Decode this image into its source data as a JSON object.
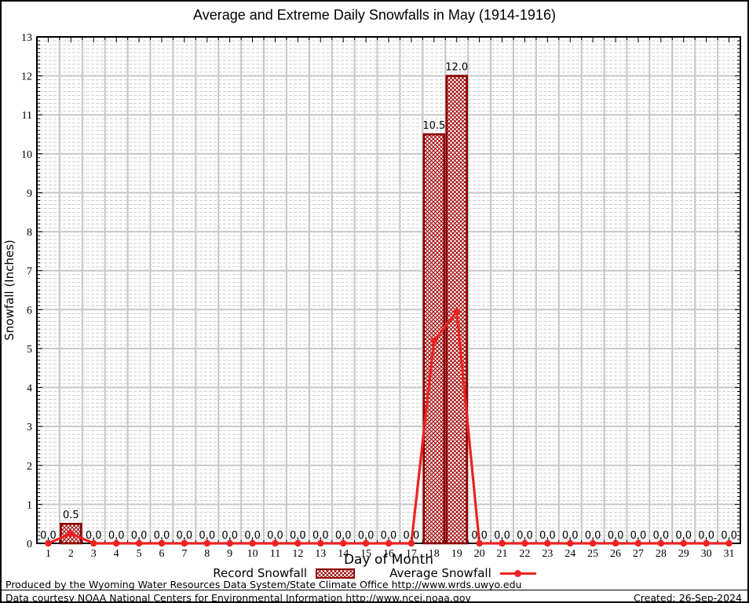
{
  "title": "Average and Extreme Daily Snowfalls in May (1914-1916)",
  "chart_data": {
    "type": "bar",
    "title": "Average and Extreme Daily Snowfalls in May (1914-1916)",
    "xlabel": "Day of Month",
    "ylabel": "Snowfall (Inches)",
    "x": [
      1,
      2,
      3,
      4,
      5,
      6,
      7,
      8,
      9,
      10,
      11,
      12,
      13,
      14,
      15,
      16,
      17,
      18,
      19,
      20,
      21,
      22,
      23,
      24,
      25,
      26,
      27,
      28,
      29,
      30,
      31
    ],
    "x_ticks": [
      1,
      2,
      3,
      4,
      5,
      6,
      7,
      8,
      9,
      10,
      11,
      12,
      13,
      14,
      15,
      16,
      17,
      18,
      19,
      20,
      21,
      22,
      23,
      24,
      25,
      26,
      27,
      28,
      29,
      30,
      31
    ],
    "y_ticks": [
      0,
      1,
      2,
      3,
      4,
      5,
      6,
      7,
      8,
      9,
      10,
      11,
      12,
      13
    ],
    "xlim": [
      0.5,
      31.5
    ],
    "ylim": [
      0,
      13
    ],
    "y_minor_step": 0.1,
    "grid": true,
    "legend_position": "bottom-center",
    "series": [
      {
        "name": "Record Snowfall",
        "type": "bar",
        "color": "#8b0000",
        "values": [
          0,
          0.5,
          0,
          0,
          0,
          0,
          0,
          0,
          0,
          0,
          0,
          0,
          0,
          0,
          0,
          0,
          0,
          10.5,
          12,
          0,
          0,
          0,
          0,
          0,
          0,
          0,
          0,
          0,
          0,
          0,
          0
        ]
      },
      {
        "name": "Average Snowfall",
        "type": "line",
        "color": "#ee2222",
        "values": [
          0,
          0.25,
          0,
          0,
          0,
          0,
          0,
          0,
          0,
          0,
          0,
          0,
          0,
          0,
          0,
          0,
          0,
          5.2,
          5.95,
          0,
          0,
          0,
          0,
          0,
          0,
          0,
          0,
          0,
          0,
          0,
          0
        ]
      }
    ],
    "bar_labels": [
      "0.0",
      "0.5",
      "0.0",
      "0.0",
      "0.0",
      "0.0",
      "0.0",
      "0.0",
      "0.0",
      "0.0",
      "0.0",
      "0.0",
      "0.0",
      "0.0",
      "0.0",
      "0.0",
      "0.0",
      "10.5",
      "12.0",
      "0.0",
      "0.0",
      "0.0",
      "0.0",
      "0.0",
      "0.0",
      "0.0",
      "0.0",
      "0.0",
      "0.0",
      "0.0",
      "0.0"
    ]
  },
  "footer": {
    "line1": "Produced by the Wyoming Water Resources Data System/State Climate Office http://www.wrds.uwyo.edu",
    "line2": "Data courtesy NOAA National Centers for Environmental Information http://www.ncei.noaa.gov",
    "created": "Created: 26-Sep-2024"
  },
  "colors": {
    "record": "#8b0000",
    "record_hatch": "#9e0000",
    "average": "#ee2222",
    "grid_major": "#c6c6c6",
    "grid_minor": "#cbcbcb",
    "axis": "#000000",
    "background": "#ffffff"
  }
}
